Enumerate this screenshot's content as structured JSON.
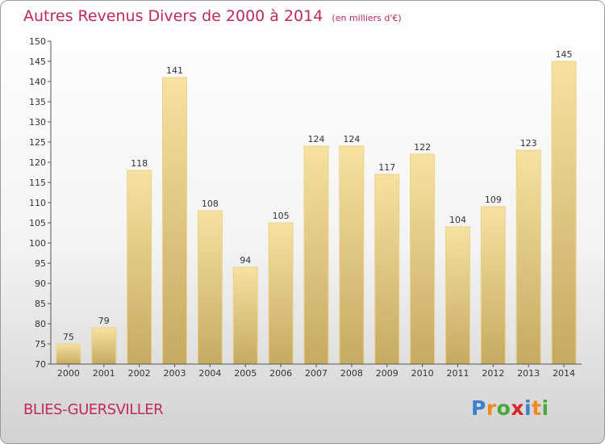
{
  "title": "Autres Revenus Divers de 2000 à 2014",
  "unit_note": "(en milliers d'€)",
  "commune": "BLIES-GUERSVILLER",
  "logo": {
    "letters": [
      "P",
      "r",
      "o",
      "x",
      "i",
      "t",
      "i"
    ],
    "colors": [
      "#3a7fd0",
      "#f08a1c",
      "#4aa83a",
      "#d8262a",
      "#3a7fd0",
      "#f08a1c",
      "#4aa83a"
    ]
  },
  "colors": {
    "title": "#c02a5a",
    "bar_light": "#f6df98",
    "bar_dark": "#c8ad66"
  },
  "chart_data": {
    "type": "bar",
    "title": "Autres Revenus Divers de 2000 à 2014",
    "xlabel": "",
    "ylabel": "",
    "categories": [
      "2000",
      "2001",
      "2002",
      "2003",
      "2004",
      "2005",
      "2006",
      "2007",
      "2008",
      "2009",
      "2010",
      "2011",
      "2012",
      "2013",
      "2014"
    ],
    "values": [
      75,
      79,
      118,
      141,
      108,
      94,
      105,
      124,
      124,
      117,
      122,
      104,
      109,
      123,
      145
    ],
    "ylim": [
      70,
      150
    ],
    "ytick_step": 5,
    "grid": false,
    "legend": "none"
  }
}
